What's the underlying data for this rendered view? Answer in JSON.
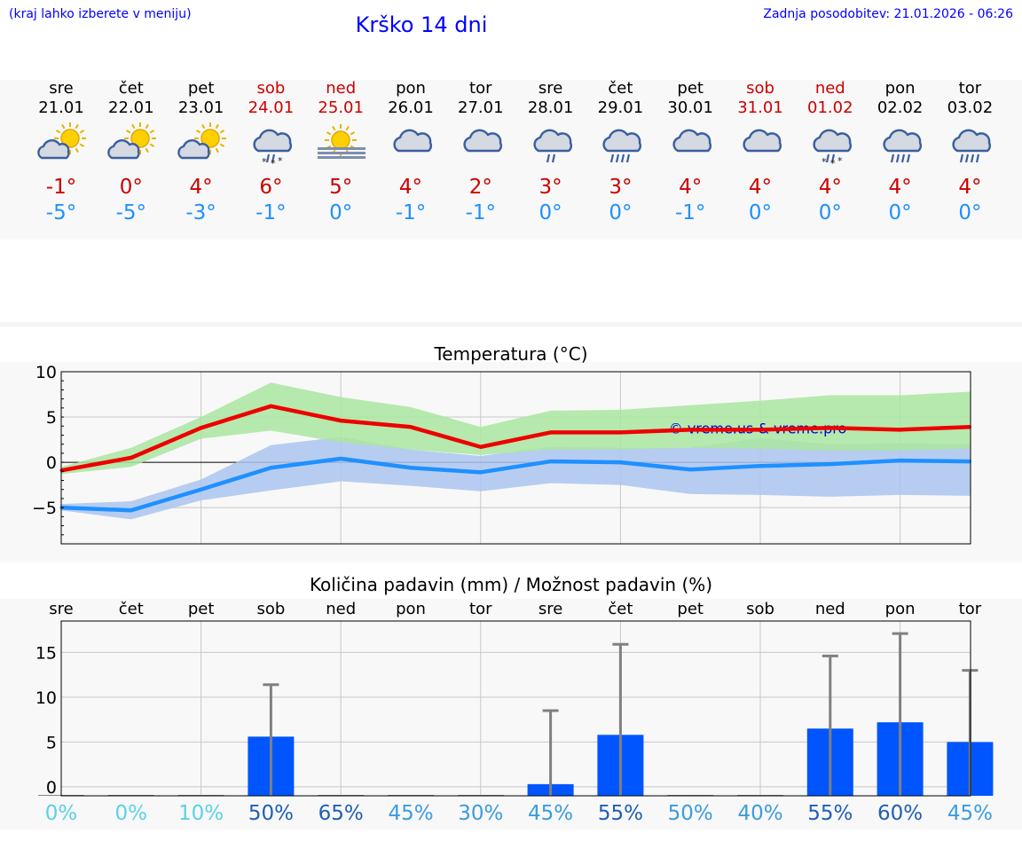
{
  "header": {
    "hint": "(kraj lahko izberete v meniju)",
    "title": "Krško 14 dni",
    "updated": "Zadnja posodobitev: 21.01.2026 - 06:26"
  },
  "days": [
    {
      "name": "sre",
      "date": "21.01",
      "weekend": false,
      "icon": "partly-sunny-icon",
      "tmax": "-1°",
      "tmin": "-5°"
    },
    {
      "name": "čet",
      "date": "22.01",
      "weekend": false,
      "icon": "partly-sunny-icon",
      "tmax": "0°",
      "tmin": "-5°"
    },
    {
      "name": "pet",
      "date": "23.01",
      "weekend": false,
      "icon": "partly-sunny-icon",
      "tmax": "4°",
      "tmin": "-3°"
    },
    {
      "name": "sob",
      "date": "24.01",
      "weekend": true,
      "icon": "sleet-icon",
      "tmax": "6°",
      "tmin": "-1°"
    },
    {
      "name": "ned",
      "date": "25.01",
      "weekend": true,
      "icon": "sun-fog-icon",
      "tmax": "5°",
      "tmin": "0°"
    },
    {
      "name": "pon",
      "date": "26.01",
      "weekend": false,
      "icon": "cloudy-icon",
      "tmax": "4°",
      "tmin": "-1°"
    },
    {
      "name": "tor",
      "date": "27.01",
      "weekend": false,
      "icon": "cloudy-icon",
      "tmax": "2°",
      "tmin": "-1°"
    },
    {
      "name": "sre",
      "date": "28.01",
      "weekend": false,
      "icon": "light-rain-icon",
      "tmax": "3°",
      "tmin": "0°"
    },
    {
      "name": "čet",
      "date": "29.01",
      "weekend": false,
      "icon": "rain-icon",
      "tmax": "3°",
      "tmin": "0°"
    },
    {
      "name": "pet",
      "date": "30.01",
      "weekend": false,
      "icon": "cloudy-icon",
      "tmax": "4°",
      "tmin": "-1°"
    },
    {
      "name": "sob",
      "date": "31.01",
      "weekend": true,
      "icon": "cloudy-icon",
      "tmax": "4°",
      "tmin": "0°"
    },
    {
      "name": "ned",
      "date": "01.02",
      "weekend": true,
      "icon": "sleet-icon",
      "tmax": "4°",
      "tmin": "0°"
    },
    {
      "name": "pon",
      "date": "02.02",
      "weekend": false,
      "icon": "rain-icon",
      "tmax": "4°",
      "tmin": "0°"
    },
    {
      "name": "tor",
      "date": "03.02",
      "weekend": false,
      "icon": "rain-icon",
      "tmax": "4°",
      "tmin": "0°"
    }
  ],
  "chart_data": [
    {
      "type": "line",
      "title": "Temperatura (°C)",
      "ylim": [
        -9,
        10
      ],
      "yticks": [
        "10",
        "5",
        "0",
        "−5"
      ],
      "ytick_values": [
        10,
        5,
        0,
        -5
      ],
      "watermark": "© vreme.us & vreme.pro",
      "grid": true,
      "series": [
        {
          "name": "max",
          "color": "#ee0000",
          "values": [
            -0.9,
            0.5,
            3.8,
            6.2,
            4.6,
            3.9,
            1.7,
            3.3,
            3.3,
            3.6,
            3.6,
            3.8,
            3.6,
            3.9
          ]
        },
        {
          "name": "min",
          "color": "#1e90ff",
          "values": [
            -5.0,
            -5.3,
            -3.0,
            -0.6,
            0.4,
            -0.6,
            -1.1,
            0.1,
            0.0,
            -0.8,
            -0.4,
            -0.2,
            0.2,
            0.1
          ]
        }
      ],
      "max_band": {
        "color": "#aae6a0",
        "low": [
          -1.3,
          -0.5,
          2.6,
          3.5,
          2.2,
          1.4,
          0.8,
          1.4,
          1.4,
          1.6,
          1.5,
          1.3,
          1.3,
          1.5
        ],
        "high": [
          -0.5,
          1.6,
          5.0,
          8.8,
          7.2,
          6.1,
          3.9,
          5.7,
          5.8,
          6.3,
          6.8,
          7.4,
          7.4,
          7.8
        ]
      },
      "min_band": {
        "color": "#aac6f0",
        "low": [
          -5.3,
          -6.3,
          -4.2,
          -3.1,
          -2.1,
          -2.6,
          -3.2,
          -2.3,
          -2.5,
          -3.5,
          -3.6,
          -3.8,
          -3.6,
          -3.7
        ],
        "high": [
          -4.6,
          -4.3,
          -1.9,
          1.9,
          2.8,
          1.4,
          0.7,
          1.7,
          1.6,
          1.6,
          2.7,
          2.0,
          2.1,
          2.0
        ]
      }
    },
    {
      "type": "bar",
      "title": "Količina padavin (mm) / Možnost padavin (%)",
      "categories": [
        "sre",
        "čet",
        "pet",
        "sob",
        "ned",
        "pon",
        "tor",
        "sre",
        "čet",
        "pet",
        "sob",
        "ned",
        "pon",
        "tor"
      ],
      "ylim": [
        -1,
        18.5
      ],
      "yticks": [
        "15",
        "10",
        "5",
        "0"
      ],
      "ytick_values": [
        15,
        10,
        5,
        0
      ],
      "grid": true,
      "values": [
        0,
        0,
        0,
        5.6,
        0,
        0,
        0,
        0.3,
        5.8,
        0,
        0,
        6.5,
        7.2,
        5.0
      ],
      "error_high": [
        0,
        0,
        0,
        11.4,
        0,
        0,
        0,
        8.5,
        15.9,
        0,
        0,
        14.6,
        17.1,
        13.0
      ],
      "probability": [
        "0%",
        "0%",
        "10%",
        "50%",
        "65%",
        "45%",
        "30%",
        "45%",
        "55%",
        "50%",
        "40%",
        "55%",
        "60%",
        "45%"
      ],
      "prob_colors": [
        "#5ad2e6",
        "#5ad2e6",
        "#5ad2e6",
        "#1f5fb4",
        "#1f5fb4",
        "#3a9be0",
        "#3a9be0",
        "#3a9be0",
        "#1f5fb4",
        "#3a9be0",
        "#3a9be0",
        "#1f5fb4",
        "#1f5fb4",
        "#3a9be0"
      ],
      "bar_color": "#0055ff",
      "whisker_color": "#808080"
    }
  ]
}
